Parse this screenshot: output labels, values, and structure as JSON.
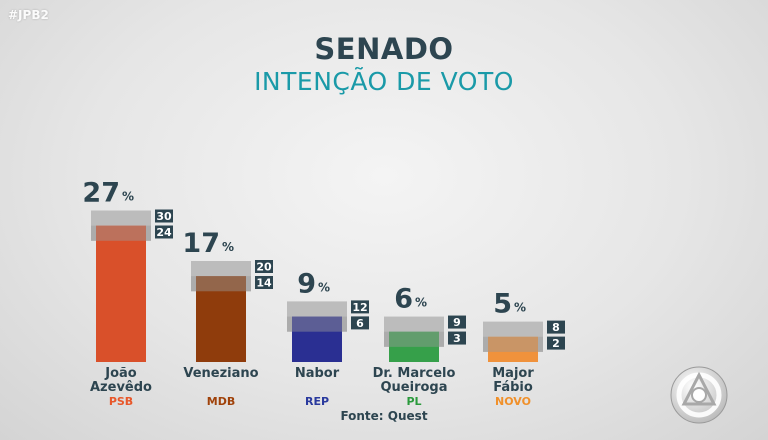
{
  "header": {
    "hashtag": "#JPB2",
    "title": "SENADO",
    "subtitle": "INTENÇÃO DE VOTO"
  },
  "source": "Fonte: Quest",
  "colors": {
    "text_dark": "#2d4550",
    "accent_teal": "#1a9aa8",
    "range_band": "#b4b4b4",
    "range_box": "#2d4550"
  },
  "logo": {
    "icon": "tv-network-logo-icon"
  },
  "chart_data": {
    "type": "bar",
    "title": "SENADO",
    "subtitle": "INTENÇÃO DE VOTO",
    "unit": "%",
    "ylim": [
      0,
      30
    ],
    "grid": false,
    "legend": "none",
    "categories": [
      {
        "line1": "João",
        "line2": "Azevêdo",
        "party": "PSB",
        "value": 27,
        "max": 30,
        "min": 24,
        "color": "#d9502a",
        "party_color": "#e8572a"
      },
      {
        "line1": "Veneziano",
        "line2": "",
        "party": "MDB",
        "value": 17,
        "max": 20,
        "min": 14,
        "color": "#8f3c0c",
        "party_color": "#a0420a"
      },
      {
        "line1": "Nabor",
        "line2": "",
        "party": "REP",
        "value": 9,
        "max": 12,
        "min": 6,
        "color": "#2a2f92",
        "party_color": "#2a3a9e"
      },
      {
        "line1": "Dr. Marcelo",
        "line2": "Queiroga",
        "party": "PL",
        "value": 6,
        "max": 9,
        "min": 3,
        "color": "#36a04a",
        "party_color": "#2a9a3c"
      },
      {
        "line1": "Major",
        "line2": "Fábio",
        "party": "NOVO",
        "value": 5,
        "max": 8,
        "min": 2,
        "color": "#f0923c",
        "party_color": "#f0902a"
      }
    ]
  }
}
